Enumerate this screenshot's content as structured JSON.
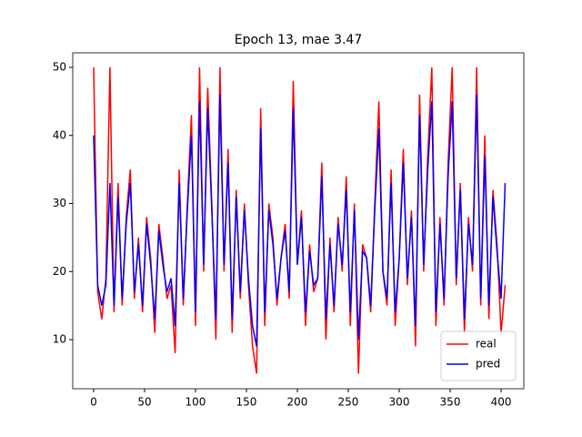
{
  "chart_data": {
    "type": "line",
    "title": "Epoch 13, mae 3.47",
    "x": [
      0,
      4,
      8,
      12,
      16,
      20,
      24,
      28,
      32,
      36,
      40,
      44,
      48,
      52,
      56,
      60,
      64,
      68,
      72,
      76,
      80,
      84,
      88,
      92,
      96,
      100,
      104,
      108,
      112,
      116,
      120,
      124,
      128,
      132,
      136,
      140,
      144,
      148,
      152,
      156,
      160,
      164,
      168,
      172,
      176,
      180,
      184,
      188,
      192,
      196,
      200,
      204,
      208,
      212,
      216,
      220,
      224,
      228,
      232,
      236,
      240,
      244,
      248,
      252,
      256,
      260,
      264,
      268,
      272,
      276,
      280,
      284,
      288,
      292,
      296,
      300,
      304,
      308,
      312,
      316,
      320,
      324,
      328,
      332,
      336,
      340,
      344,
      348,
      352,
      356,
      360,
      364,
      368,
      372,
      376,
      380,
      384,
      388,
      392,
      396,
      400,
      404
    ],
    "series": [
      {
        "name": "real",
        "color": "#ff0000",
        "values": [
          50,
          17,
          13,
          19,
          50,
          14,
          33,
          15,
          28,
          35,
          16,
          25,
          14,
          28,
          22,
          11,
          27,
          22,
          16,
          18,
          8,
          35,
          15,
          30,
          43,
          12,
          50,
          20,
          47,
          30,
          10,
          50,
          20,
          38,
          11,
          32,
          16,
          30,
          18,
          9,
          5,
          44,
          12,
          30,
          25,
          15,
          22,
          27,
          16,
          48,
          21,
          29,
          12,
          24,
          17,
          19,
          36,
          10,
          25,
          14,
          28,
          20,
          34,
          12,
          30,
          5,
          24,
          22,
          14,
          30,
          45,
          20,
          15,
          35,
          12,
          22,
          38,
          18,
          29,
          9,
          46,
          20,
          37,
          50,
          12,
          28,
          15,
          36,
          50,
          18,
          33,
          11,
          28,
          20,
          50,
          15,
          40,
          13,
          32,
          24,
          11,
          18
        ]
      },
      {
        "name": "pred",
        "color": "#0000ff",
        "values": [
          40,
          18,
          15,
          18,
          33,
          15,
          31,
          16,
          27,
          33,
          17,
          24,
          15,
          27,
          21,
          13,
          26,
          21,
          17,
          19,
          12,
          33,
          16,
          29,
          40,
          14,
          45,
          21,
          44,
          29,
          13,
          46,
          21,
          36,
          13,
          31,
          17,
          29,
          19,
          12,
          9,
          41,
          14,
          29,
          24,
          16,
          22,
          26,
          17,
          44,
          21,
          28,
          14,
          23,
          18,
          19,
          34,
          13,
          24,
          15,
          27,
          21,
          32,
          14,
          29,
          10,
          23,
          22,
          15,
          29,
          41,
          20,
          16,
          33,
          14,
          22,
          36,
          19,
          28,
          12,
          43,
          21,
          35,
          45,
          14,
          27,
          16,
          34,
          45,
          19,
          32,
          13,
          27,
          21,
          46,
          16,
          37,
          15,
          31,
          23,
          16,
          33
        ]
      }
    ],
    "xlim": [
      -20.5,
      422.3
    ],
    "ylim": [
      2.78,
      52.14
    ],
    "xticks": [
      0,
      50,
      100,
      150,
      200,
      250,
      300,
      350,
      400
    ],
    "yticks": [
      10,
      20,
      30,
      40,
      50
    ],
    "legend": "lower right"
  }
}
